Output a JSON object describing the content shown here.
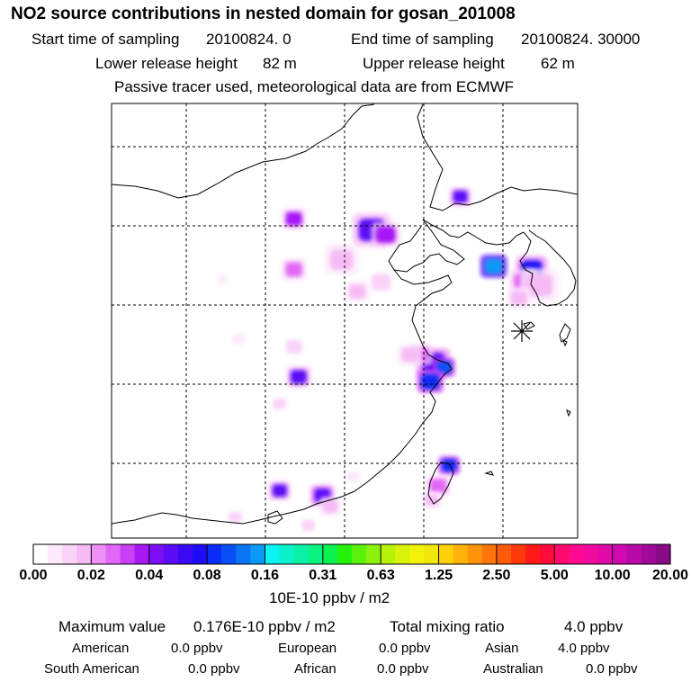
{
  "header": {
    "title": "NO2 source contributions in nested domain for gosan_201008",
    "start_label": "Start time of sampling",
    "start_value": "20100824.    0",
    "end_label": "End time of sampling",
    "end_value": "20100824. 30000",
    "lower_label": "Lower release height",
    "lower_value": "82 m",
    "upper_label": "Upper release height",
    "upper_value": "62 m",
    "note": "Passive tracer used, meteorological data are from ECMWF"
  },
  "chart_data": {
    "type": "heatmap",
    "title": "NO2 source contributions in nested domain for gosan_201008",
    "units": "10E-10 ppbv / m2",
    "receptor_marker": "asterisk",
    "colorbar": {
      "tick_labels": [
        "0.00",
        "0.02",
        "0.04",
        "0.08",
        "0.16",
        "0.31",
        "0.63",
        "1.25",
        "2.50",
        "5.00",
        "10.00",
        "20.00"
      ],
      "colors": [
        "#ffffff",
        "#fde9fc",
        "#fad3f9",
        "#f6bbf5",
        "#ef90f6",
        "#e167f6",
        "#c93ff6",
        "#a718f6",
        "#7f0ef6",
        "#5b0bf6",
        "#3a0af6",
        "#1e0cf6",
        "#0a2cf6",
        "#0a4ff6",
        "#0a74f6",
        "#0a99f6",
        "#0af2f2",
        "#0af2cc",
        "#0af2a6",
        "#0af280",
        "#0af250",
        "#24f20a",
        "#5af20a",
        "#8cf20a",
        "#b8f20a",
        "#d9f20a",
        "#f2f20a",
        "#f2e50a",
        "#ffd10a",
        "#ffb30a",
        "#ff940a",
        "#ff750a",
        "#ff5a0a",
        "#ff3a0a",
        "#ff1a1a",
        "#ff0a3a",
        "#ff0a6e",
        "#ff0a90",
        "#f00a9e",
        "#e00aa8",
        "#d00ab0",
        "#b80aa8",
        "#a00a98",
        "#880a88",
        "#700a78",
        "#580a68",
        "#440a58",
        "#300a48"
      ]
    },
    "hotspots": [
      {
        "lon": 116.4,
        "lat": 39.9,
        "value": 0.05,
        "size": 1.6
      },
      {
        "lon": 117.3,
        "lat": 39.6,
        "value": 0.04,
        "size": 1.2
      },
      {
        "lon": 114.5,
        "lat": 38.3,
        "value": 0.02,
        "size": 1.0
      },
      {
        "lon": 111.5,
        "lat": 40.6,
        "value": 0.04,
        "size": 1.0
      },
      {
        "lon": 111.5,
        "lat": 37.4,
        "value": 0.03,
        "size": 1.0
      },
      {
        "lon": 114.5,
        "lat": 38.0,
        "value": 0.015,
        "size": 1.4
      },
      {
        "lon": 117.0,
        "lat": 36.6,
        "value": 0.01,
        "size": 1.2
      },
      {
        "lon": 115.5,
        "lat": 36.0,
        "value": 0.015,
        "size": 1.0
      },
      {
        "lon": 120.3,
        "lat": 31.5,
        "value": 0.06,
        "size": 1.4
      },
      {
        "lon": 121.0,
        "lat": 31.2,
        "value": 0.1,
        "size": 0.9
      },
      {
        "lon": 120.1,
        "lat": 30.3,
        "value": 0.09,
        "size": 1.1
      },
      {
        "lon": 119.5,
        "lat": 32.0,
        "value": 0.03,
        "size": 1.0
      },
      {
        "lon": 118.8,
        "lat": 32.0,
        "value": 0.02,
        "size": 1.0
      },
      {
        "lon": 111.8,
        "lat": 30.6,
        "value": 0.05,
        "size": 1.0
      },
      {
        "lon": 111.5,
        "lat": 32.5,
        "value": 0.01,
        "size": 1.0
      },
      {
        "lon": 108.0,
        "lat": 33.0,
        "value": 0.008,
        "size": 0.8
      },
      {
        "lon": 124.1,
        "lat": 37.6,
        "value": 0.16,
        "size": 1.1
      },
      {
        "lon": 126.5,
        "lat": 37.4,
        "value": 0.07,
        "size": 1.3
      },
      {
        "lon": 126.0,
        "lat": 36.6,
        "value": 0.03,
        "size": 1.2
      },
      {
        "lon": 127.0,
        "lat": 36.4,
        "value": 0.02,
        "size": 1.6
      },
      {
        "lon": 125.7,
        "lat": 35.6,
        "value": 0.02,
        "size": 1.0
      },
      {
        "lon": 122.0,
        "lat": 42.0,
        "value": 0.05,
        "size": 0.9
      },
      {
        "lon": 121.3,
        "lat": 25.0,
        "value": 0.09,
        "size": 0.9
      },
      {
        "lon": 120.6,
        "lat": 23.7,
        "value": 0.03,
        "size": 1.0
      },
      {
        "lon": 120.2,
        "lat": 22.8,
        "value": 0.02,
        "size": 0.8
      },
      {
        "lon": 113.3,
        "lat": 23.1,
        "value": 0.06,
        "size": 1.0
      },
      {
        "lon": 110.6,
        "lat": 23.4,
        "value": 0.05,
        "size": 0.9
      },
      {
        "lon": 113.8,
        "lat": 22.4,
        "value": 0.015,
        "size": 0.9
      },
      {
        "lon": 112.4,
        "lat": 21.2,
        "value": 0.01,
        "size": 0.8
      },
      {
        "lon": 115.2,
        "lat": 24.3,
        "value": 0.008,
        "size": 0.8
      },
      {
        "lon": 107.8,
        "lat": 21.7,
        "value": 0.01,
        "size": 0.8
      },
      {
        "lon": 110.6,
        "lat": 28.9,
        "value": 0.01,
        "size": 0.8
      },
      {
        "lon": 107.0,
        "lat": 36.8,
        "value": 0.006,
        "size": 0.6
      },
      {
        "lon": 123.6,
        "lat": 35.6,
        "value": 0.004,
        "size": 0.6
      }
    ]
  },
  "footer": {
    "max_label": "Maximum value",
    "max_value": "0.176E-10 ppbv / m2",
    "total_label": "Total mixing ratio",
    "total_value": "4.0 ppbv",
    "regions": [
      {
        "name": "American",
        "value": "0.0 ppbv"
      },
      {
        "name": "European",
        "value": "0.0 ppbv"
      },
      {
        "name": "Asian",
        "value": "4.0 ppbv"
      },
      {
        "name": "South American",
        "value": "0.0 ppbv"
      },
      {
        "name": "African",
        "value": "0.0 ppbv"
      },
      {
        "name": "Australian",
        "value": "0.0 ppbv"
      }
    ]
  }
}
